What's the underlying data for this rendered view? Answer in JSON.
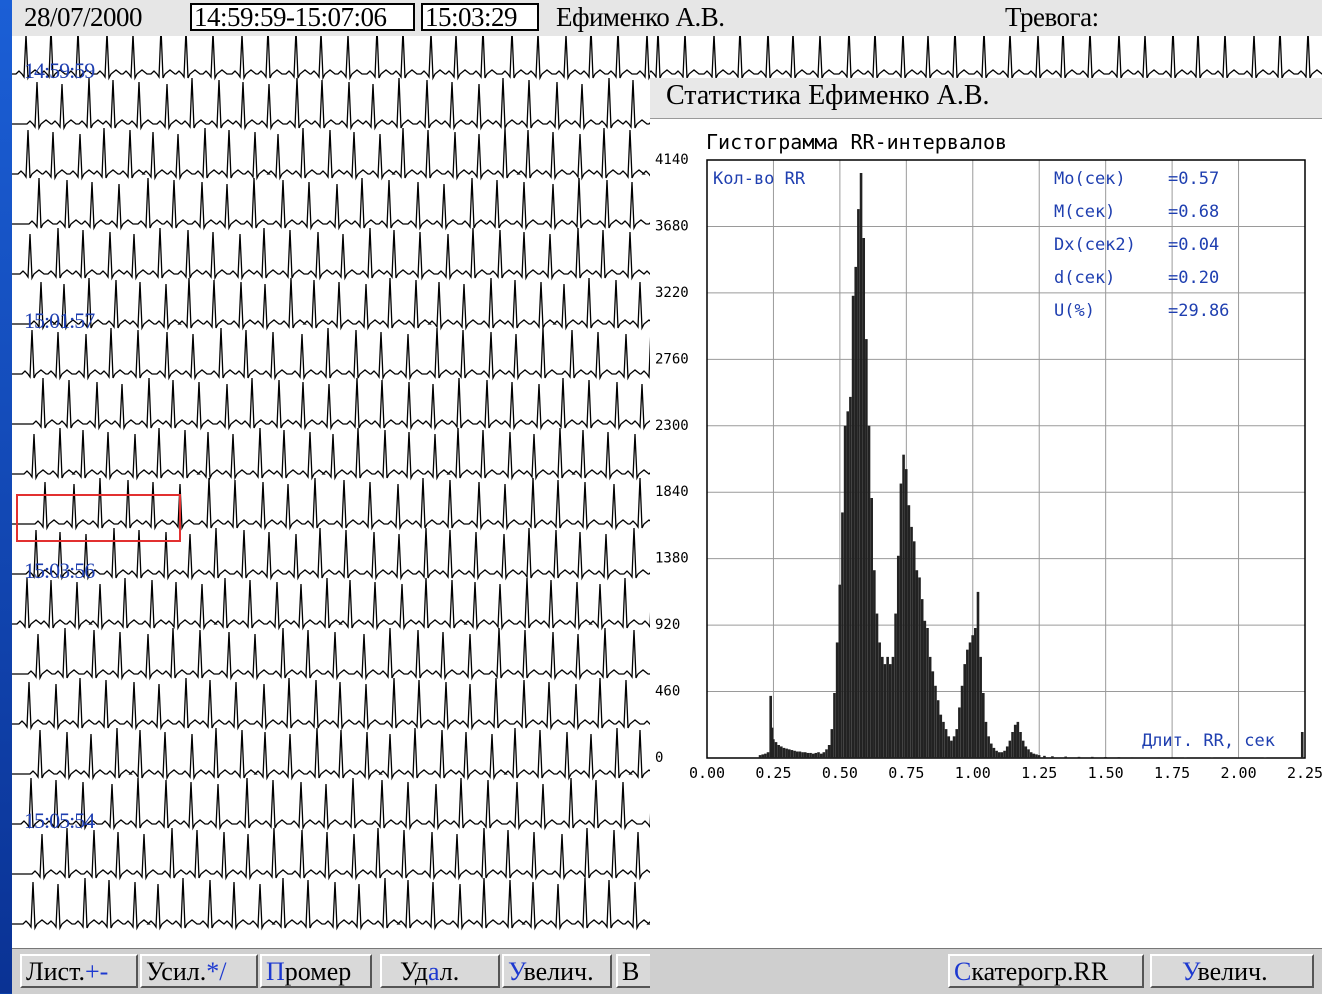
{
  "header": {
    "date": "28/07/2000",
    "time_range": "14:59:59-15:07:06",
    "current_time": "15:03:29",
    "patient": "Ефименко А.В.",
    "alarm_label": "Тревога:"
  },
  "ecg": {
    "timestamps": [
      "14:59:59",
      "15:01:57",
      "15:03:56",
      "15:05:54"
    ]
  },
  "statistics": {
    "title": "Статистика   Ефименко А.В.",
    "histogram_title": "Гистограмма RR-интервалов",
    "y_axis_label": "Кол-во RR",
    "x_axis_label": "Длит. RR, сек",
    "metrics": [
      {
        "name": "Mo(сек)",
        "value": "=0.57"
      },
      {
        "name": "M(сек)",
        "value": "=0.68"
      },
      {
        "name": "Dx(сек2)",
        "value": "=0.04"
      },
      {
        "name": "d(сек)",
        "value": "=0.20"
      },
      {
        "name": "U(%)",
        "value": "=29.86"
      }
    ]
  },
  "chart_data": {
    "type": "bar",
    "title": "Гистограмма RR-интервалов",
    "xlabel": "Длит. RR, сек",
    "ylabel": "Кол-во RR",
    "xlim": [
      0,
      2.25
    ],
    "ylim": [
      0,
      4140
    ],
    "x_ticks": [
      "0.00",
      "0.25",
      "0.50",
      "0.75",
      "1.00",
      "1.25",
      "1.50",
      "1.75",
      "2.00",
      "2.25"
    ],
    "y_ticks": [
      "0",
      "460",
      "920",
      "1380",
      "1840",
      "2300",
      "2760",
      "3220",
      "3680",
      "4140"
    ],
    "grid": true,
    "bins": [
      [
        0.2,
        20
      ],
      [
        0.21,
        25
      ],
      [
        0.22,
        30
      ],
      [
        0.23,
        40
      ],
      [
        0.24,
        430
      ],
      [
        0.245,
        210
      ],
      [
        0.25,
        130
      ],
      [
        0.26,
        110
      ],
      [
        0.27,
        90
      ],
      [
        0.28,
        80
      ],
      [
        0.29,
        70
      ],
      [
        0.3,
        65
      ],
      [
        0.31,
        60
      ],
      [
        0.32,
        55
      ],
      [
        0.33,
        50
      ],
      [
        0.34,
        45
      ],
      [
        0.35,
        45
      ],
      [
        0.36,
        40
      ],
      [
        0.37,
        40
      ],
      [
        0.38,
        35
      ],
      [
        0.39,
        35
      ],
      [
        0.4,
        30
      ],
      [
        0.41,
        35
      ],
      [
        0.42,
        40
      ],
      [
        0.43,
        30
      ],
      [
        0.44,
        40
      ],
      [
        0.45,
        60
      ],
      [
        0.46,
        90
      ],
      [
        0.47,
        200
      ],
      [
        0.48,
        450
      ],
      [
        0.49,
        800
      ],
      [
        0.5,
        1200
      ],
      [
        0.51,
        1700
      ],
      [
        0.52,
        2300
      ],
      [
        0.53,
        2400
      ],
      [
        0.54,
        2500
      ],
      [
        0.55,
        3200
      ],
      [
        0.56,
        3400
      ],
      [
        0.57,
        3800
      ],
      [
        0.58,
        4050
      ],
      [
        0.59,
        3600
      ],
      [
        0.6,
        2900
      ],
      [
        0.61,
        2300
      ],
      [
        0.62,
        1800
      ],
      [
        0.63,
        1300
      ],
      [
        0.64,
        1000
      ],
      [
        0.65,
        800
      ],
      [
        0.66,
        700
      ],
      [
        0.67,
        650
      ],
      [
        0.68,
        700
      ],
      [
        0.69,
        650
      ],
      [
        0.7,
        700
      ],
      [
        0.71,
        1000
      ],
      [
        0.72,
        1400
      ],
      [
        0.73,
        1900
      ],
      [
        0.74,
        2100
      ],
      [
        0.75,
        2000
      ],
      [
        0.76,
        1750
      ],
      [
        0.77,
        1600
      ],
      [
        0.78,
        1500
      ],
      [
        0.79,
        1300
      ],
      [
        0.8,
        1250
      ],
      [
        0.81,
        1100
      ],
      [
        0.82,
        950
      ],
      [
        0.83,
        900
      ],
      [
        0.84,
        700
      ],
      [
        0.85,
        600
      ],
      [
        0.86,
        500
      ],
      [
        0.87,
        400
      ],
      [
        0.88,
        300
      ],
      [
        0.89,
        250
      ],
      [
        0.9,
        200
      ],
      [
        0.91,
        150
      ],
      [
        0.92,
        120
      ],
      [
        0.93,
        150
      ],
      [
        0.94,
        200
      ],
      [
        0.95,
        350
      ],
      [
        0.96,
        500
      ],
      [
        0.97,
        650
      ],
      [
        0.98,
        750
      ],
      [
        0.99,
        800
      ],
      [
        1.0,
        850
      ],
      [
        1.01,
        900
      ],
      [
        1.02,
        1150
      ],
      [
        1.03,
        700
      ],
      [
        1.04,
        450
      ],
      [
        1.05,
        250
      ],
      [
        1.06,
        150
      ],
      [
        1.07,
        100
      ],
      [
        1.08,
        70
      ],
      [
        1.09,
        50
      ],
      [
        1.1,
        40
      ],
      [
        1.11,
        40
      ],
      [
        1.12,
        50
      ],
      [
        1.13,
        80
      ],
      [
        1.14,
        120
      ],
      [
        1.15,
        180
      ],
      [
        1.16,
        230
      ],
      [
        1.17,
        250
      ],
      [
        1.18,
        180
      ],
      [
        1.19,
        120
      ],
      [
        1.2,
        80
      ],
      [
        1.21,
        60
      ],
      [
        1.22,
        40
      ],
      [
        1.23,
        30
      ],
      [
        1.24,
        25
      ],
      [
        1.25,
        20
      ],
      [
        1.27,
        15
      ],
      [
        1.3,
        12
      ],
      [
        1.35,
        10
      ],
      [
        1.4,
        8
      ],
      [
        1.45,
        8
      ],
      [
        1.5,
        7
      ],
      [
        1.55,
        6
      ],
      [
        1.6,
        5
      ],
      [
        1.7,
        5
      ],
      [
        1.8,
        4
      ],
      [
        1.9,
        4
      ],
      [
        2.0,
        3
      ],
      [
        2.1,
        3
      ],
      [
        2.24,
        180
      ]
    ]
  },
  "toolbar_left": [
    {
      "hl": "",
      "label": "Лист.",
      "suffix": "+-"
    },
    {
      "hl": "",
      "label": "Усил.",
      "suffix": "*/"
    },
    {
      "hl": "П",
      "label": "ромер",
      "suffix": ""
    },
    {
      "hl": "",
      "label": "Уд",
      "suffix": ""
    },
    {
      "hl": "У",
      "label": "велич.",
      "suffix": ""
    },
    {
      "hl": "",
      "label": "В",
      "suffix": ""
    }
  ],
  "udal_rest": {
    "hl": "а",
    "label": "л."
  },
  "toolbar_right": [
    {
      "hl": "С",
      "label": "катерогр.RR"
    },
    {
      "hl": "У",
      "label": "велич."
    }
  ]
}
